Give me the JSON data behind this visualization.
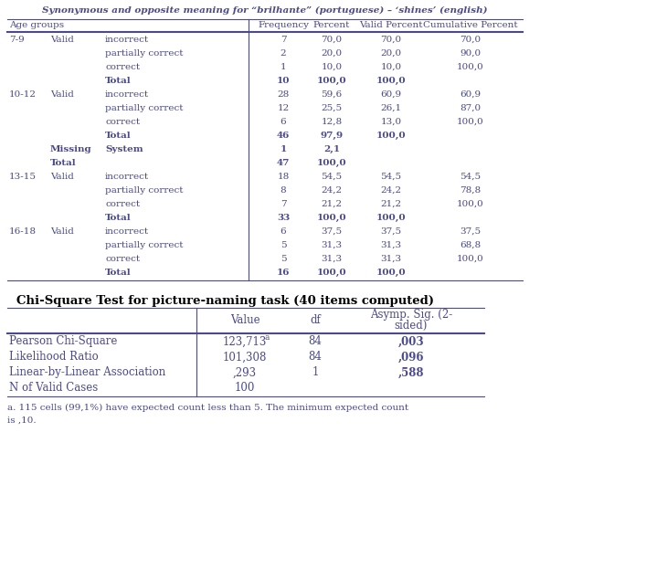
{
  "title1": "Synonymous and opposite meaning for “brilhante” (portuguese) – ‘shines’ (english)",
  "rows1": [
    [
      "7-9",
      "Valid",
      "incorrect",
      "7",
      "70,0",
      "70,0",
      "70,0"
    ],
    [
      "",
      "",
      "partially correct",
      "2",
      "20,0",
      "20,0",
      "90,0"
    ],
    [
      "",
      "",
      "correct",
      "1",
      "10,0",
      "10,0",
      "100,0"
    ],
    [
      "",
      "",
      "Total",
      "10",
      "100,0",
      "100,0",
      ""
    ],
    [
      "10-12",
      "Valid",
      "incorrect",
      "28",
      "59,6",
      "60,9",
      "60,9"
    ],
    [
      "",
      "",
      "partially correct",
      "12",
      "25,5",
      "26,1",
      "87,0"
    ],
    [
      "",
      "",
      "correct",
      "6",
      "12,8",
      "13,0",
      "100,0"
    ],
    [
      "",
      "",
      "Total",
      "46",
      "97,9",
      "100,0",
      ""
    ],
    [
      "",
      "Missing",
      "System",
      "1",
      "2,1",
      "",
      ""
    ],
    [
      "",
      "Total",
      "",
      "47",
      "100,0",
      "",
      ""
    ],
    [
      "13-15",
      "Valid",
      "incorrect",
      "18",
      "54,5",
      "54,5",
      "54,5"
    ],
    [
      "",
      "",
      "partially correct",
      "8",
      "24,2",
      "24,2",
      "78,8"
    ],
    [
      "",
      "",
      "correct",
      "7",
      "21,2",
      "21,2",
      "100,0"
    ],
    [
      "",
      "",
      "Total",
      "33",
      "100,0",
      "100,0",
      ""
    ],
    [
      "16-18",
      "Valid",
      "incorrect",
      "6",
      "37,5",
      "37,5",
      "37,5"
    ],
    [
      "",
      "",
      "partially correct",
      "5",
      "31,3",
      "31,3",
      "68,8"
    ],
    [
      "",
      "",
      "correct",
      "5",
      "31,3",
      "31,3",
      "100,0"
    ],
    [
      "",
      "",
      "Total",
      "16",
      "100,0",
      "100,0",
      ""
    ]
  ],
  "bold_rows1": [
    3,
    7,
    8,
    9,
    13,
    17
  ],
  "title2": "Chi-Square Test for picture-naming task (40 items computed)",
  "rows2": [
    [
      "Pearson Chi-Square",
      "123,713",
      "a",
      "84",
      ",003",
      "bold"
    ],
    [
      "Likelihood Ratio",
      "101,308",
      "",
      "84",
      ",096",
      "normal"
    ],
    [
      "Linear-by-Linear Association",
      ",293",
      "",
      "1",
      ",588",
      "normal"
    ],
    [
      "N of Valid Cases",
      "100",
      "",
      "",
      "",
      "normal"
    ]
  ],
  "footnote1": "a. 115 cells (99,1%) have expected count less than 5. The minimum expected count",
  "footnote2": "is ,10.",
  "tc": "#4a4a8c",
  "black": "#000000",
  "lw_thin": 0.8,
  "lw_thick": 1.5
}
